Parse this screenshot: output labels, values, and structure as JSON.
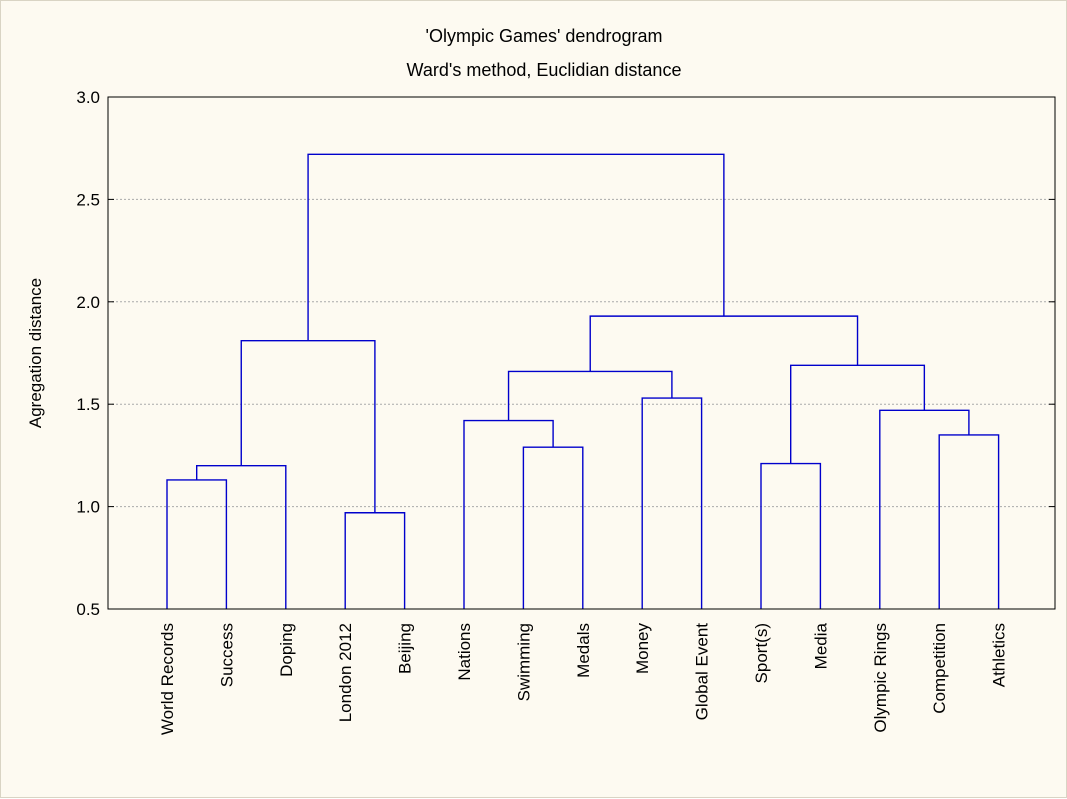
{
  "chart_data": {
    "type": "dendrogram",
    "title": "'Olympic Games' dendrogram",
    "subtitle": "Ward's method, Euclidian distance",
    "ylabel": "Agregation distance",
    "xlabel": "",
    "ylim": [
      0.5,
      3.0
    ],
    "yticks": [
      "0.5",
      "1.0",
      "1.5",
      "2.0",
      "2.5",
      "3.0"
    ],
    "ytick_values": [
      0.5,
      1.0,
      1.5,
      2.0,
      2.5,
      3.0
    ],
    "grid": true,
    "line_color": "#0000cc",
    "leaves": [
      "World Records",
      "Success",
      "Doping",
      "London 2012",
      "Beijing",
      "Nations",
      "Swimming",
      "Medals",
      "Money",
      "Global Event",
      "Sport(s)",
      "Media",
      "Olympic Rings",
      "Competition",
      "Athletics"
    ],
    "merges": [
      {
        "a": "World Records",
        "b": "Success",
        "height": 1.13
      },
      {
        "a": "World Records+Success",
        "b": "Doping",
        "height": 1.2
      },
      {
        "a": "London 2012",
        "b": "Beijing",
        "height": 0.97
      },
      {
        "a": "World Records+Success+Doping",
        "b": "London 2012+Beijing",
        "height": 1.81
      },
      {
        "a": "Swimming",
        "b": "Medals",
        "height": 1.29
      },
      {
        "a": "Nations",
        "b": "Swimming+Medals",
        "height": 1.42
      },
      {
        "a": "Money",
        "b": "Global Event",
        "height": 1.53
      },
      {
        "a": "Nations+Swimming+Medals",
        "b": "Money+Global Event",
        "height": 1.66
      },
      {
        "a": "Sport(s)",
        "b": "Media",
        "height": 1.21
      },
      {
        "a": "Competition",
        "b": "Athletics",
        "height": 1.35
      },
      {
        "a": "Olympic Rings",
        "b": "Competition+Athletics",
        "height": 1.47
      },
      {
        "a": "Sport(s)+Media",
        "b": "Olympic Rings+Competition+Athletics",
        "height": 1.69
      },
      {
        "a": "Nations+Swimming+Medals+Money+Global Event",
        "b": "Sport(s)+Media+Olympic Rings+Competition+Athletics",
        "height": 1.93
      },
      {
        "a": "World Records+Success+Doping+London 2012+Beijing",
        "b": "Nations+Swimming+Medals+Money+Global Event+Sport(s)+Media+Olympic Rings+Competition+Athletics",
        "height": 2.72
      }
    ]
  }
}
